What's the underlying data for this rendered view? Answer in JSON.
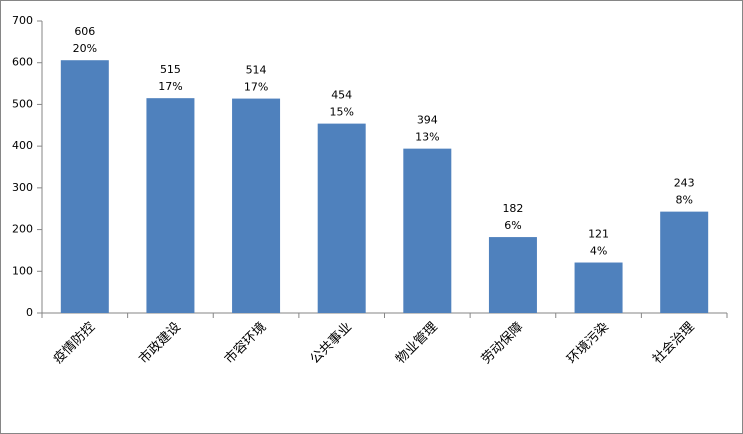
{
  "chart_data": {
    "type": "bar",
    "categories": [
      "疫情防控",
      "市政建设",
      "市容环境",
      "公共事业",
      "物业管理",
      "劳动保障",
      "环境污染",
      "社会治理"
    ],
    "values": [
      606,
      515,
      514,
      454,
      394,
      182,
      121,
      243
    ],
    "percent_labels": [
      "20%",
      "17%",
      "17%",
      "15%",
      "13%",
      "6%",
      "4%",
      "8%"
    ],
    "color": "#4f81bd",
    "ylim": [
      0,
      700
    ],
    "yticks": [
      0,
      100,
      200,
      300,
      400,
      500,
      600,
      700
    ],
    "grid": false
  }
}
